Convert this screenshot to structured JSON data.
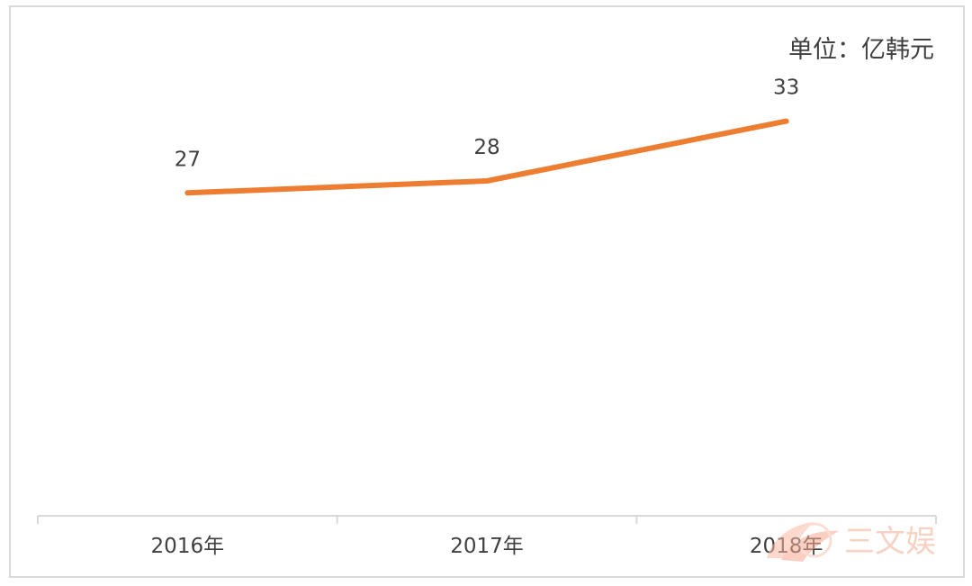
{
  "chart_data": {
    "type": "line",
    "categories": [
      "2016年",
      "2017年",
      "2018年"
    ],
    "series": [
      {
        "values": [
          27,
          28,
          33
        ],
        "color": "#ED7D31"
      }
    ],
    "data_labels": [
      "27",
      "28",
      "33"
    ],
    "unit_label": "单位：亿韩元",
    "ylim": [
      0,
      42
    ],
    "grid": false,
    "legend": "none"
  },
  "watermark": {
    "text": "三文娱",
    "color": "#F6C9B7"
  },
  "colors": {
    "axis": "#D9D9D9",
    "text": "#404040",
    "frame": "#D9D9D9"
  }
}
